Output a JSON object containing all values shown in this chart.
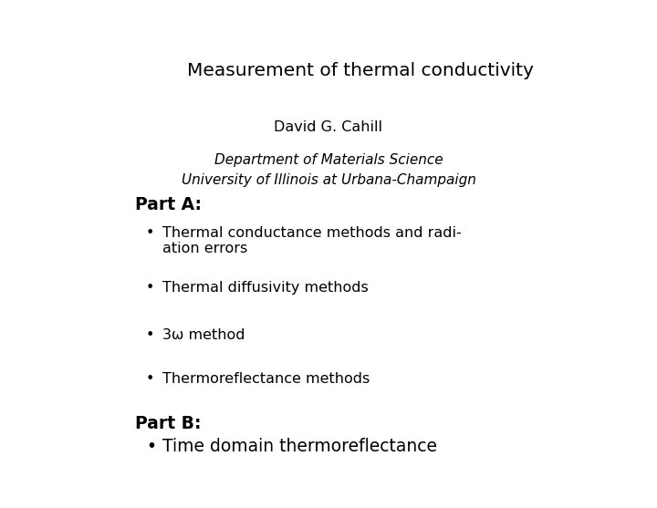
{
  "title": "Measurement of thermal conductivity",
  "author": "David G. Cahill",
  "dept_line1": "Department of Materials Science",
  "dept_line2": "University of Illinois at Urbana-Champaign",
  "part_a_label": "Part A:",
  "bullet_a1_line1": "Thermal conductance methods and radi-",
  "bullet_a1_line2": "ation errors",
  "bullet_a2": "Thermal diffusivity methods",
  "bullet_a3": "3ω method",
  "bullet_a4": "Thermoreflectance methods",
  "part_b_label": "Part B:",
  "bullet_b1": "Time domain thermoreflectance",
  "bg_color": "#ffffff",
  "text_color": "#000000",
  "title_fontsize": 14.5,
  "author_fontsize": 11.5,
  "dept_fontsize": 11,
  "part_label_fontsize": 13.5,
  "body_fontsize": 11.5,
  "part_b_fontsize": 13.5
}
